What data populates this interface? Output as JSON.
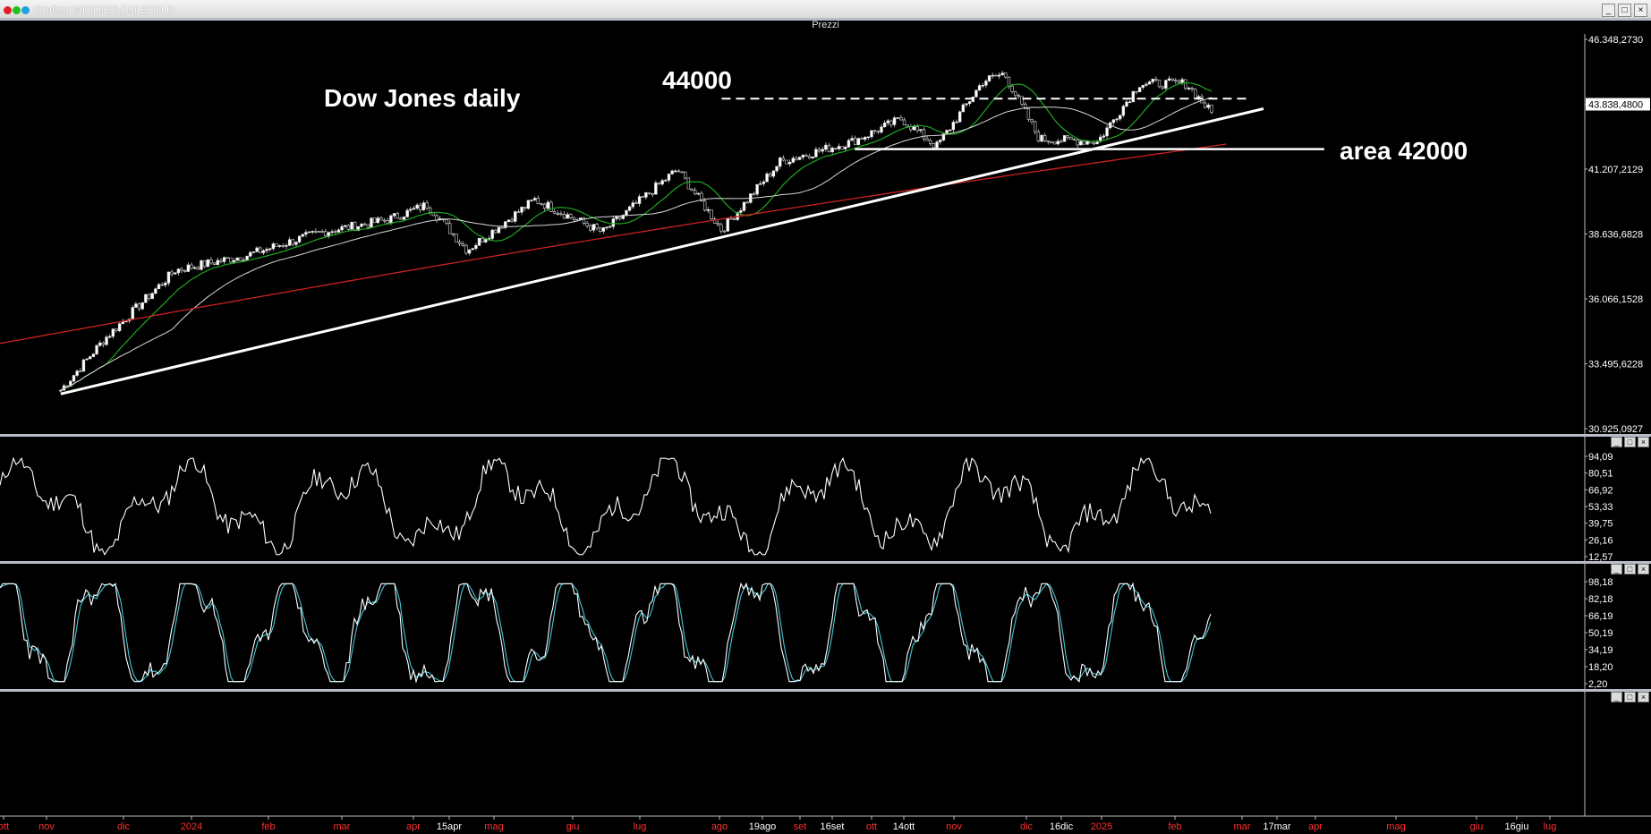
{
  "window": {
    "title": "Grafico INDICIES.DJI EOD D",
    "buttons": [
      "_",
      "□",
      "×"
    ]
  },
  "price_panel": {
    "header": "Prezzi",
    "annotations": {
      "title": "Dow Jones daily",
      "level_top": "44000",
      "level_area": "area 42000"
    },
    "yticks": [
      "46.348,2730",
      "43.838,4800",
      "41.207,2129",
      "38.636,6828",
      "36.066,1528",
      "33.495,6228",
      "30.925,0927"
    ],
    "colors": {
      "price_up": "#ffffff",
      "ma_fast": "#1fa81f",
      "ma_mid": "#d8d8d8",
      "ma_slow": "#cc2222",
      "trendline": "#ffffff"
    }
  },
  "rsi_panel": {
    "header": "",
    "yticks": [
      "94,09",
      "80,51",
      "66,92",
      "53,33",
      "39,75",
      "26,16",
      "12,57"
    ]
  },
  "stoch_panel": {
    "header": "",
    "yticks": [
      "98,18",
      "82,18",
      "66,19",
      "50,19",
      "34,19",
      "18,20",
      "2,20"
    ],
    "colors": {
      "k": "#ffffff",
      "d": "#40c8d8"
    }
  },
  "empty_panel": {
    "header": ""
  },
  "xaxis": {
    "labels": [
      {
        "t": "ott",
        "c": "#ff3030"
      },
      {
        "t": "nov",
        "c": "#ff3030"
      },
      {
        "t": "dic",
        "c": "#ff3030"
      },
      {
        "t": "2024",
        "c": "#ff3030"
      },
      {
        "t": "feb",
        "c": "#ff3030"
      },
      {
        "t": "mar",
        "c": "#ff3030"
      },
      {
        "t": "apr",
        "c": "#ff3030"
      },
      {
        "t": "15apr",
        "c": "#ffffff"
      },
      {
        "t": "mag",
        "c": "#ff3030"
      },
      {
        "t": "giu",
        "c": "#ff3030"
      },
      {
        "t": "lug",
        "c": "#ff3030"
      },
      {
        "t": "ago",
        "c": "#ff3030"
      },
      {
        "t": "19ago",
        "c": "#ffffff"
      },
      {
        "t": "set",
        "c": "#ff3030"
      },
      {
        "t": "16set",
        "c": "#ffffff"
      },
      {
        "t": "ott",
        "c": "#ff3030"
      },
      {
        "t": "14ott",
        "c": "#ffffff"
      },
      {
        "t": "nov",
        "c": "#ff3030"
      },
      {
        "t": "dic",
        "c": "#ff3030"
      },
      {
        "t": "16dic",
        "c": "#ffffff"
      },
      {
        "t": "2025",
        "c": "#ff3030"
      },
      {
        "t": "feb",
        "c": "#ff3030"
      },
      {
        "t": "mar",
        "c": "#ff3030"
      },
      {
        "t": "17mar",
        "c": "#ffffff"
      },
      {
        "t": "apr",
        "c": "#ff3030"
      },
      {
        "t": "mag",
        "c": "#ff3030"
      },
      {
        "t": "giu",
        "c": "#ff3030"
      },
      {
        "t": "16giu",
        "c": "#ffffff"
      },
      {
        "t": "lug",
        "c": "#ff3030"
      }
    ]
  },
  "chart_data": {
    "type": "line",
    "title": "Dow Jones daily",
    "x": [
      "2023-10-27",
      "2023-11-15",
      "2023-12-15",
      "2024-01-15",
      "2024-02-15",
      "2024-03-15",
      "2024-04-01",
      "2024-04-18",
      "2024-05-17",
      "2024-06-15",
      "2024-07-17",
      "2024-08-05",
      "2024-08-30",
      "2024-09-30",
      "2024-10-21",
      "2024-11-05",
      "2024-11-25",
      "2024-12-04",
      "2024-12-19",
      "2025-01-13",
      "2025-01-31",
      "2025-02-20",
      "2025-03-03"
    ],
    "series": [
      {
        "values": [
          32450,
          34500,
          37200,
          37800,
          38700,
          39200,
          39800,
          38000,
          40000,
          38700,
          41200,
          38800,
          41500,
          42300,
          43200,
          42100,
          44700,
          45000,
          42400,
          42300,
          44600,
          44600,
          43400
        ]
      }
    ],
    "horizontal_levels": [
      44000,
      42000
    ],
    "ylim": [
      30925.0927,
      46348.273
    ]
  }
}
